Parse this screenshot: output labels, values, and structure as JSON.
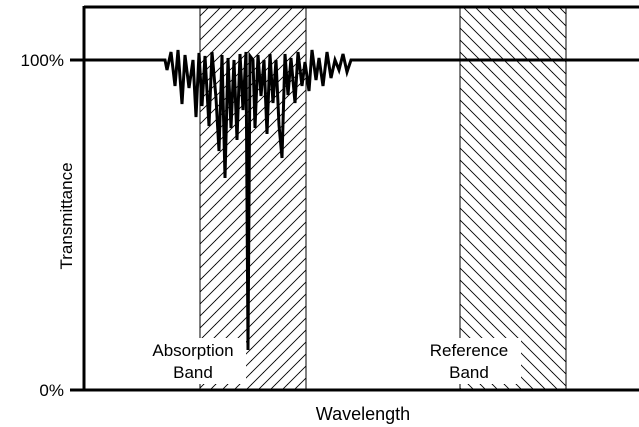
{
  "chart_data": {
    "type": "line",
    "xlabel": "Wavelength",
    "ylabel": "Transmittance",
    "y_ticks": [
      "100%",
      "0%"
    ],
    "bands": [
      {
        "line1": "Absorption",
        "line2": "Band",
        "hatch": "forward"
      },
      {
        "line1": "Reference",
        "line2": "Band",
        "hatch": "backward"
      }
    ],
    "line_color": "#000000"
  }
}
